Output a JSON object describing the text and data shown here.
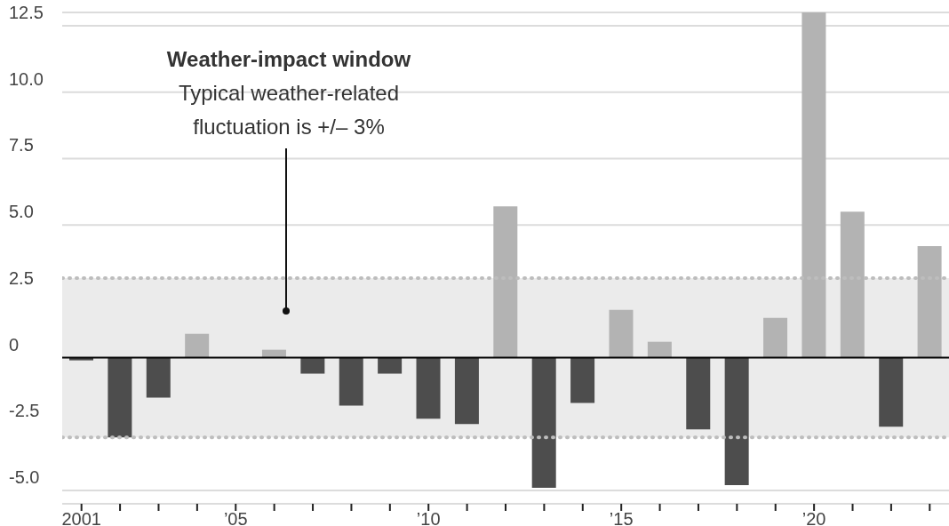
{
  "chart_data": {
    "type": "bar",
    "categories": [
      "2001",
      null,
      null,
      null,
      "’05",
      null,
      null,
      null,
      null,
      "’10",
      null,
      null,
      null,
      null,
      "’15",
      null,
      null,
      null,
      null,
      "’20",
      null,
      null,
      null
    ],
    "values": [
      -0.1,
      -3.0,
      -1.5,
      0.9,
      0,
      0.3,
      -0.6,
      -1.8,
      -0.6,
      -2.3,
      -2.5,
      5.7,
      -4.9,
      -1.7,
      1.8,
      0.6,
      -2.7,
      -4.8,
      1.5,
      13.0,
      5.5,
      -2.6,
      4.2
    ],
    "colors": [
      "#4d4d4d",
      "#4d4d4d",
      "#4d4d4d",
      "#b3b3b3",
      "#b3b3b3",
      "#b3b3b3",
      "#4d4d4d",
      "#4d4d4d",
      "#4d4d4d",
      "#4d4d4d",
      "#4d4d4d",
      "#b3b3b3",
      "#4d4d4d",
      "#4d4d4d",
      "#b3b3b3",
      "#b3b3b3",
      "#4d4d4d",
      "#4d4d4d",
      "#b3b3b3",
      "#b3b3b3",
      "#b3b3b3",
      "#4d4d4d",
      "#b3b3b3"
    ],
    "ylim": [
      -5.5,
      13
    ],
    "yticks": [
      {
        "value": -5,
        "label": "-5.0"
      },
      {
        "value": -2.5,
        "label": "-2.5"
      },
      0,
      {
        "value": 2.5,
        "label": "2.5"
      },
      {
        "value": 5,
        "label": "5.0"
      },
      {
        "value": 7.5,
        "label": "7.5"
      },
      {
        "value": 10,
        "label": "10.0"
      },
      {
        "value": 12.5,
        "label": "12.5"
      }
    ],
    "grid": "y",
    "bands": [
      {
        "axis": "y",
        "from": -3,
        "to": 3,
        "color": "#ebebeb"
      }
    ],
    "ref_lines": [
      {
        "axis": "y",
        "value": 3,
        "color": "#bdbdbd",
        "line_style": "dotted"
      },
      {
        "axis": "y",
        "value": -3,
        "color": "#bdbdbd",
        "line_style": "dotted"
      },
      {
        "axis": "y",
        "value": 0,
        "color": "#000000",
        "line_style": "solid"
      }
    ],
    "annotations": [
      "Weather-impact window",
      "Typical weather-related fluctuation is +/– 3%"
    ]
  }
}
